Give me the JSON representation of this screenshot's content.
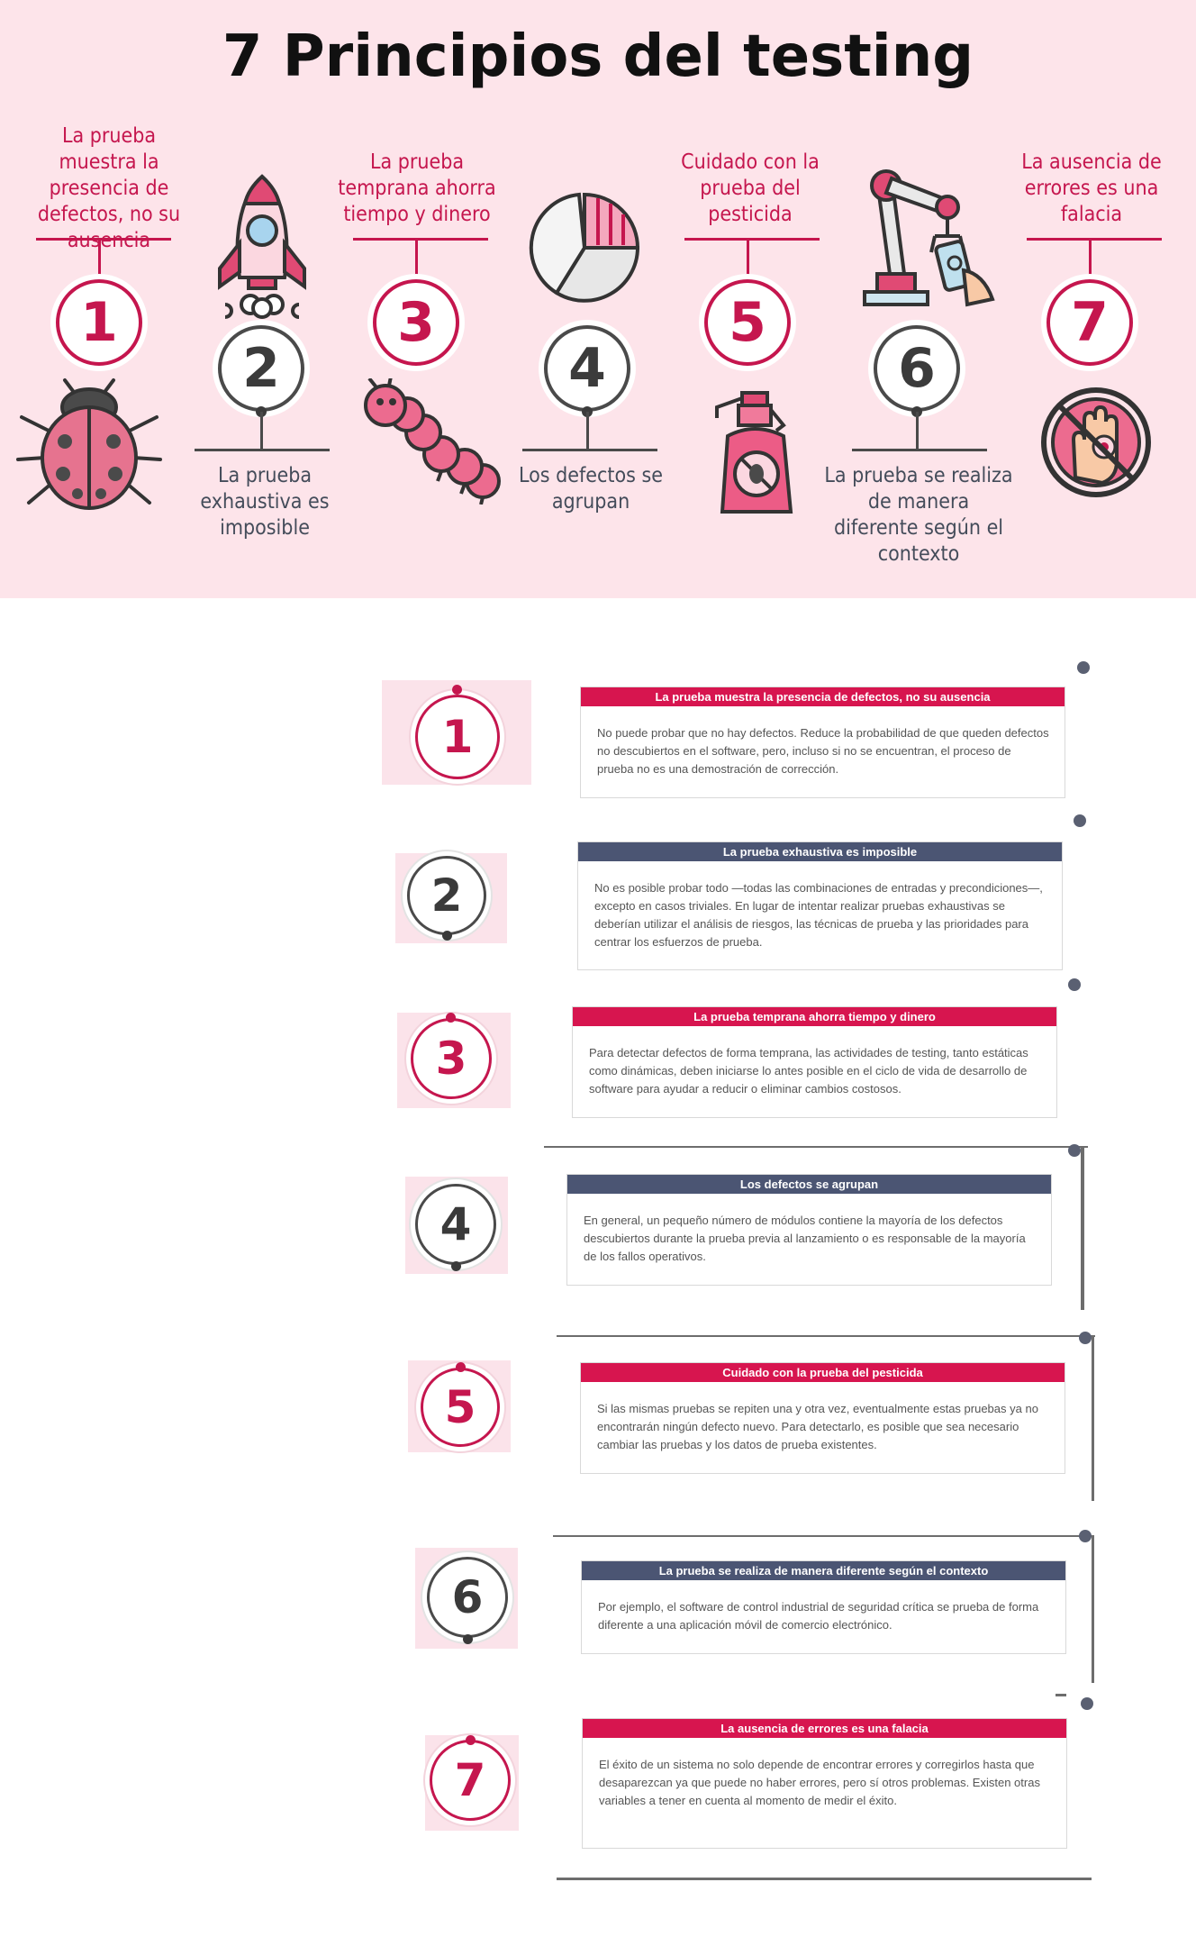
{
  "title": "7 Principios del testing",
  "colors": {
    "accent": "#c5164e",
    "gray": "#4a4a4a",
    "navy": "#4b5573",
    "background": "#fde4ea"
  },
  "principles": [
    {
      "number": "1",
      "label": "La prueba muestra la presencia de defectos, no su ausencia",
      "icon": "ladybug-icon"
    },
    {
      "number": "2",
      "label": "La prueba exhaustiva es imposible",
      "icon": "rocket-icon"
    },
    {
      "number": "3",
      "label": "La prueba temprana ahorra tiempo y dinero",
      "icon": "caterpillar-icon"
    },
    {
      "number": "4",
      "label": "Los defectos se agrupan",
      "icon": "pie-chart-icon"
    },
    {
      "number": "5",
      "label": "Cuidado con la prueba del pesticida",
      "icon": "pesticide-spray-icon"
    },
    {
      "number": "6",
      "label": "La prueba se realiza de manera diferente según el contexto",
      "icon": "robot-arm-icon"
    },
    {
      "number": "7",
      "label": "La ausencia de errores es una falacia",
      "icon": "no-bug-hand-icon"
    }
  ],
  "cards": [
    {
      "number": "1",
      "title": "La prueba muestra la presencia de defectos, no su ausencia",
      "text": "No puede probar que no hay defectos. Reduce la probabilidad de que queden defectos no descubiertos en el software, pero, incluso si no se encuentran, el proceso de prueba no es una demostración de corrección."
    },
    {
      "number": "2",
      "title": "La prueba exhaustiva es imposible",
      "text": "No es posible probar todo —todas las combinaciones de entradas y precondiciones—, excepto en casos triviales. En lugar de intentar realizar pruebas exhaustivas se deberían utilizar el análisis de riesgos, las técnicas de prueba y las prioridades para centrar los esfuerzos de prueba."
    },
    {
      "number": "3",
      "title": "La prueba temprana ahorra tiempo y dinero",
      "text": "Para detectar defectos de forma temprana, las actividades de testing, tanto estáticas como dinámicas, deben iniciarse lo antes posible en el ciclo de vida de desarrollo de software para ayudar a reducir o eliminar cambios costosos."
    },
    {
      "number": "4",
      "title": "Los defectos se agrupan",
      "text": "En general, un pequeño número de módulos contiene la mayoría de los defectos descubiertos durante la prueba previa al lanzamiento o es responsable de la mayoría de los fallos operativos."
    },
    {
      "number": "5",
      "title": "Cuidado con la prueba del pesticida",
      "text": "Si las mismas pruebas se repiten una y otra vez, eventualmente estas pruebas ya no encontrarán ningún defecto nuevo. Para detectarlo, es posible que sea necesario cambiar las pruebas y los datos de prueba existentes."
    },
    {
      "number": "6",
      "title": "La prueba se realiza de manera diferente según el contexto",
      "text": "Por ejemplo, el software de control industrial de seguridad crítica se prueba de forma diferente a una aplicación móvil de comercio electrónico."
    },
    {
      "number": "7",
      "title": "La ausencia de errores es una falacia",
      "text": "El éxito de un sistema no solo depende de encontrar errores y corregirlos hasta que desaparezcan ya que puede no haber errores, pero sí otros problemas. Existen otras variables a tener en cuenta al momento de medir el éxito."
    }
  ]
}
